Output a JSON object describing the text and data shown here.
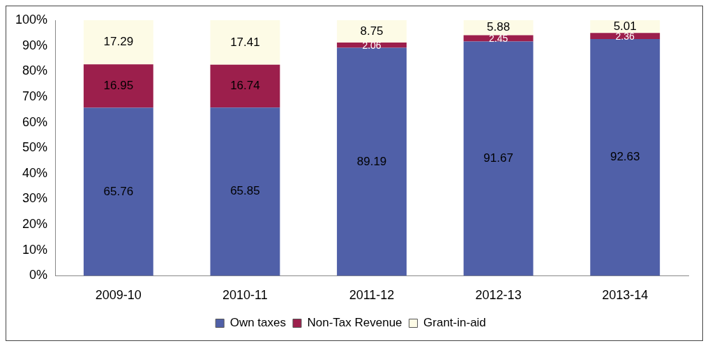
{
  "chart_data": {
    "type": "bar",
    "stacked": true,
    "categories": [
      "2009-10",
      "2010-11",
      "2011-12",
      "2012-13",
      "2013-14"
    ],
    "series": [
      {
        "name": "Own taxes",
        "color": "#5060a8",
        "values": [
          65.76,
          65.85,
          89.19,
          91.67,
          92.63
        ]
      },
      {
        "name": "Non-Tax Revenue",
        "color": "#9c1f4c",
        "values": [
          16.95,
          16.74,
          2.06,
          2.45,
          2.36
        ]
      },
      {
        "name": "Grant-in-aid",
        "color": "#fdfbe6",
        "values": [
          17.29,
          17.41,
          8.75,
          5.88,
          5.01
        ]
      }
    ],
    "ylim": [
      0,
      100
    ],
    "yticks": [
      {
        "value": 0,
        "label": "0%"
      },
      {
        "value": 10,
        "label": "10%"
      },
      {
        "value": 20,
        "label": "20%"
      },
      {
        "value": 30,
        "label": "30%"
      },
      {
        "value": 40,
        "label": "40%"
      },
      {
        "value": 50,
        "label": "50%"
      },
      {
        "value": 60,
        "label": "60%"
      },
      {
        "value": 70,
        "label": "70%"
      },
      {
        "value": 80,
        "label": "80%"
      },
      {
        "value": 90,
        "label": "90%"
      },
      {
        "value": 100,
        "label": "100%"
      }
    ],
    "grid": false,
    "legend": "bottom",
    "data_labels": true
  }
}
